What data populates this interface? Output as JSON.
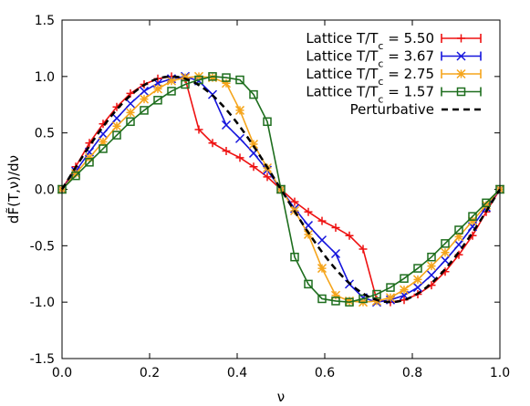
{
  "chart_data": {
    "type": "line",
    "xlabel": "ν",
    "ylabel": "dF̃(T,ν)/dν",
    "xlim": [
      0.0,
      1.0
    ],
    "ylim": [
      -1.5,
      1.5
    ],
    "xticks": [
      "0.0",
      "0.2",
      "0.4",
      "0.6",
      "0.8",
      "1.0"
    ],
    "yticks": [
      "-1.5",
      "-1.0",
      "-0.5",
      "0.0",
      "0.5",
      "1.0",
      "1.5"
    ],
    "xtick_values": [
      0.0,
      0.2,
      0.4,
      0.6,
      0.8,
      1.0
    ],
    "ytick_values": [
      -1.5,
      -1.0,
      -0.5,
      0.0,
      0.5,
      1.0,
      1.5
    ],
    "legend_position": "top-right",
    "x": [
      0.0,
      0.03125,
      0.0625,
      0.09375,
      0.125,
      0.15625,
      0.1875,
      0.21875,
      0.25,
      0.28125,
      0.3125,
      0.34375,
      0.375,
      0.40625,
      0.4375,
      0.46875,
      0.5,
      0.53125,
      0.5625,
      0.59375,
      0.625,
      0.65625,
      0.6875,
      0.71875,
      0.75,
      0.78125,
      0.8125,
      0.84375,
      0.875,
      0.90625,
      0.9375,
      0.96875,
      1.0
    ],
    "series": [
      {
        "name": "Lattice T/Tc = 5.50",
        "legend_base": "Lattice T/T",
        "legend_sub": "c",
        "legend_value": " = 5.50",
        "color": "#ee1111",
        "marker": "plus",
        "values": [
          0.0,
          0.2,
          0.41,
          0.58,
          0.73,
          0.85,
          0.93,
          0.98,
          1.0,
          0.98,
          0.53,
          0.41,
          0.34,
          0.28,
          0.2,
          0.11,
          0.0,
          -0.11,
          -0.2,
          -0.28,
          -0.34,
          -0.41,
          -0.53,
          -0.98,
          -1.0,
          -0.98,
          -0.93,
          -0.85,
          -0.73,
          -0.58,
          -0.41,
          -0.2,
          0.0
        ]
      },
      {
        "name": "Lattice T/Tc = 3.67",
        "legend_base": "Lattice T/T",
        "legend_sub": "c",
        "legend_value": " = 3.67",
        "color": "#1515dd",
        "marker": "cross",
        "values": [
          0.0,
          0.16,
          0.33,
          0.49,
          0.63,
          0.76,
          0.87,
          0.94,
          0.98,
          1.0,
          0.96,
          0.84,
          0.57,
          0.45,
          0.32,
          0.17,
          0.0,
          -0.17,
          -0.32,
          -0.45,
          -0.57,
          -0.84,
          -0.96,
          -1.0,
          -0.98,
          -0.94,
          -0.87,
          -0.76,
          -0.63,
          -0.49,
          -0.33,
          -0.16,
          0.0
        ]
      },
      {
        "name": "Lattice T/Tc = 2.75",
        "legend_base": "Lattice T/T",
        "legend_sub": "c",
        "legend_value": " = 2.75",
        "color": "#f5a51c",
        "marker": "star",
        "values": [
          0.0,
          0.14,
          0.28,
          0.42,
          0.56,
          0.68,
          0.8,
          0.89,
          0.96,
          0.99,
          1.0,
          0.99,
          0.94,
          0.7,
          0.4,
          0.19,
          0.0,
          -0.19,
          -0.4,
          -0.7,
          -0.94,
          -0.99,
          -1.0,
          -0.99,
          -0.96,
          -0.89,
          -0.8,
          -0.68,
          -0.56,
          -0.42,
          -0.28,
          -0.14,
          0.0
        ]
      },
      {
        "name": "Lattice T/Tc = 1.57",
        "legend_base": "Lattice T/T",
        "legend_sub": "c",
        "legend_value": " = 1.57",
        "color": "#1e6e1e",
        "marker": "square",
        "values": [
          0.0,
          0.12,
          0.24,
          0.36,
          0.48,
          0.6,
          0.7,
          0.79,
          0.87,
          0.93,
          0.97,
          1.0,
          0.99,
          0.97,
          0.84,
          0.6,
          0.0,
          -0.6,
          -0.84,
          -0.97,
          -0.99,
          -1.0,
          -0.97,
          -0.93,
          -0.87,
          -0.79,
          -0.7,
          -0.6,
          -0.48,
          -0.36,
          -0.24,
          -0.12,
          0.0
        ]
      },
      {
        "name": "Perturbative",
        "legend_base": "Perturbative",
        "legend_sub": "",
        "legend_value": "",
        "color": "#000000",
        "marker": "none",
        "style": "dashed",
        "function": "sin(2*pi*nu)"
      }
    ]
  }
}
